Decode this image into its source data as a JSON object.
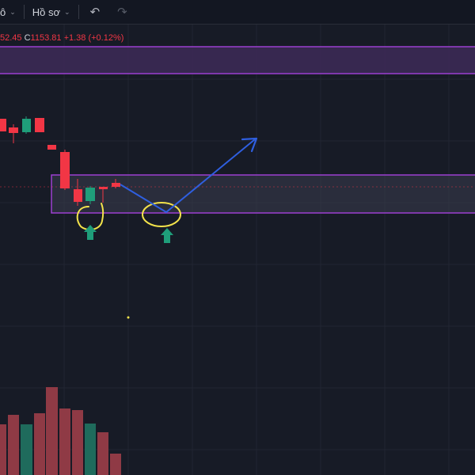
{
  "toolbar": {
    "partial_label": "ô",
    "profile_label": "Hồ sơ",
    "undo_glyph": "↶",
    "redo_glyph": "↷"
  },
  "legend": {
    "prev_value": "52.45",
    "close_label": "C",
    "close_value": "1153.81",
    "change": "+1.38",
    "change_pct": "(+0.12%)"
  },
  "colors": {
    "background": "#171b26",
    "grid": "#222632",
    "bull": "#1f9e7a",
    "bear": "#f23645",
    "zone_fill": "#3d2a58",
    "zone_border": "#9c3fd0",
    "annotation_circle": "#f3e34b",
    "annotation_arrow": "#1f9e7a",
    "projection_line": "#2f5fe0",
    "volume_bear": "#8f3a45",
    "volume_bull": "#1f6b5c"
  },
  "icons": [
    "chevron-down-icon",
    "undo-icon",
    "redo-icon",
    "arrow-up-icon",
    "projection-arrow-icon"
  ]
}
